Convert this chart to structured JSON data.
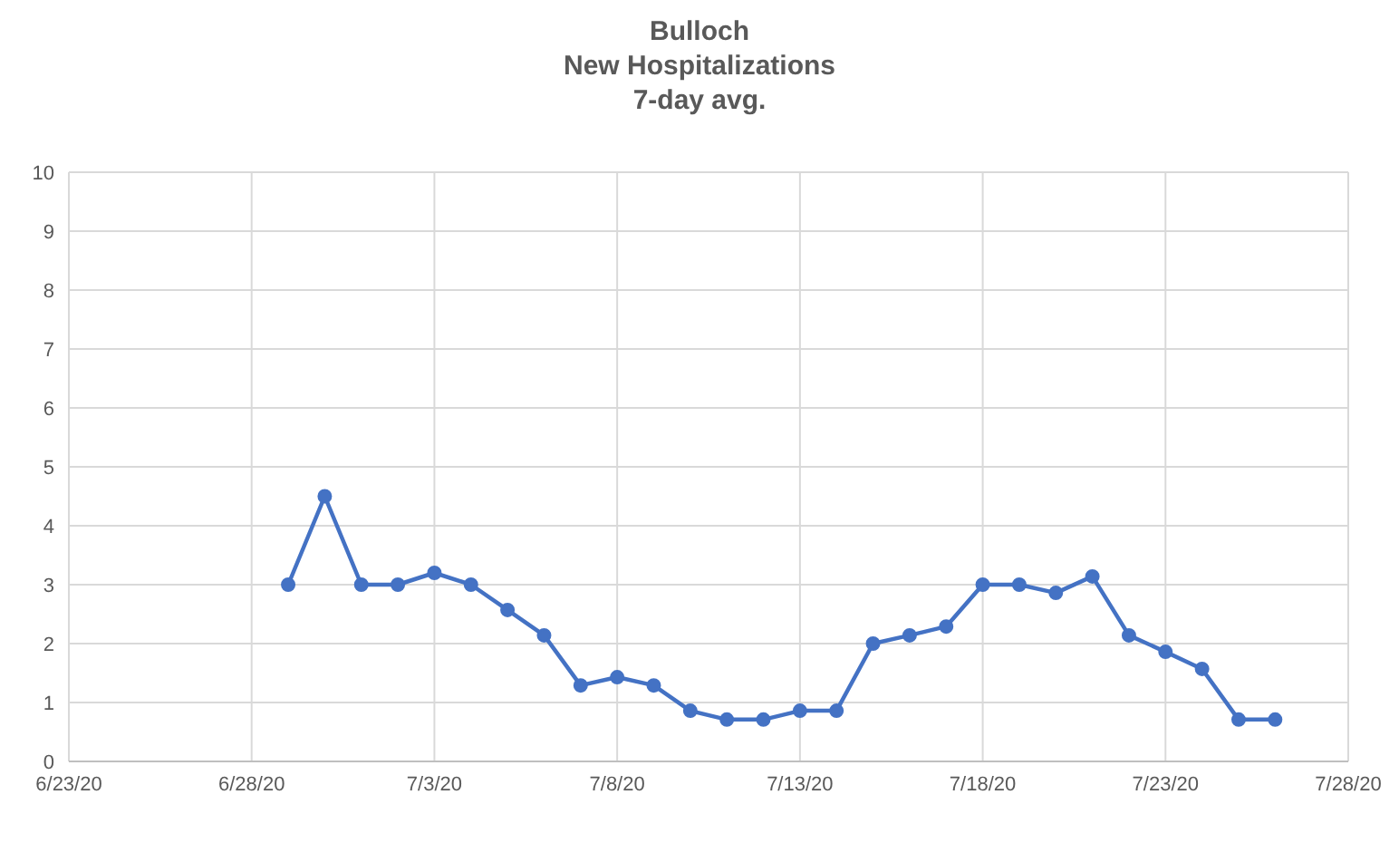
{
  "chart_data": {
    "type": "line",
    "title": "Bulloch\nNew Hospitalizations\n7-day avg.",
    "x": [
      "--06-29",
      "--06-30",
      "--07-01",
      "--07-02",
      "--07-03",
      "--07-04",
      "--07-05",
      "--07-06",
      "--07-07",
      "--07-08",
      "--07-09",
      "--07-10",
      "--07-11",
      "--07-12",
      "--07-13",
      "--07-14",
      "--07-15",
      "--07-16",
      "--07-17",
      "--07-18",
      "--07-19",
      "--07-20",
      "--07-21",
      "--07-22",
      "--07-23",
      "--07-24",
      "--07-25",
      "--07-26"
    ],
    "series": [
      {
        "color": "#4472c4",
        "values": [
          3.0,
          4.5,
          3.0,
          3.0,
          3.2,
          3.0,
          2.57,
          2.14,
          1.29,
          1.43,
          1.29,
          0.86,
          0.71,
          0.71,
          0.86,
          0.86,
          2.0,
          2.14,
          2.29,
          3.0,
          3.0,
          2.86,
          3.14,
          2.14,
          1.86,
          1.57,
          0.71,
          0.71
        ]
      }
    ],
    "xlim": [
      "--06-23",
      "--07-28"
    ],
    "xticks": [
      {
        "value": "--06-23",
        "label": "6/23/20"
      },
      {
        "value": "--06-28",
        "label": "6/28/20"
      },
      {
        "value": "--07-03",
        "label": "7/3/20"
      },
      {
        "value": "--07-08",
        "label": "7/8/20"
      },
      {
        "value": "--07-13",
        "label": "7/13/20"
      },
      {
        "value": "--07-18",
        "label": "7/18/20"
      },
      {
        "value": "--07-23",
        "label": "7/23/20"
      },
      {
        "value": "--07-28",
        "label": "7/28/20"
      }
    ],
    "ylim": [
      0,
      10
    ],
    "yticks": [
      0,
      1,
      2,
      3,
      4,
      5,
      6,
      7,
      8,
      9,
      10
    ],
    "grid": true,
    "marker": "circle",
    "line_style": "solid"
  }
}
